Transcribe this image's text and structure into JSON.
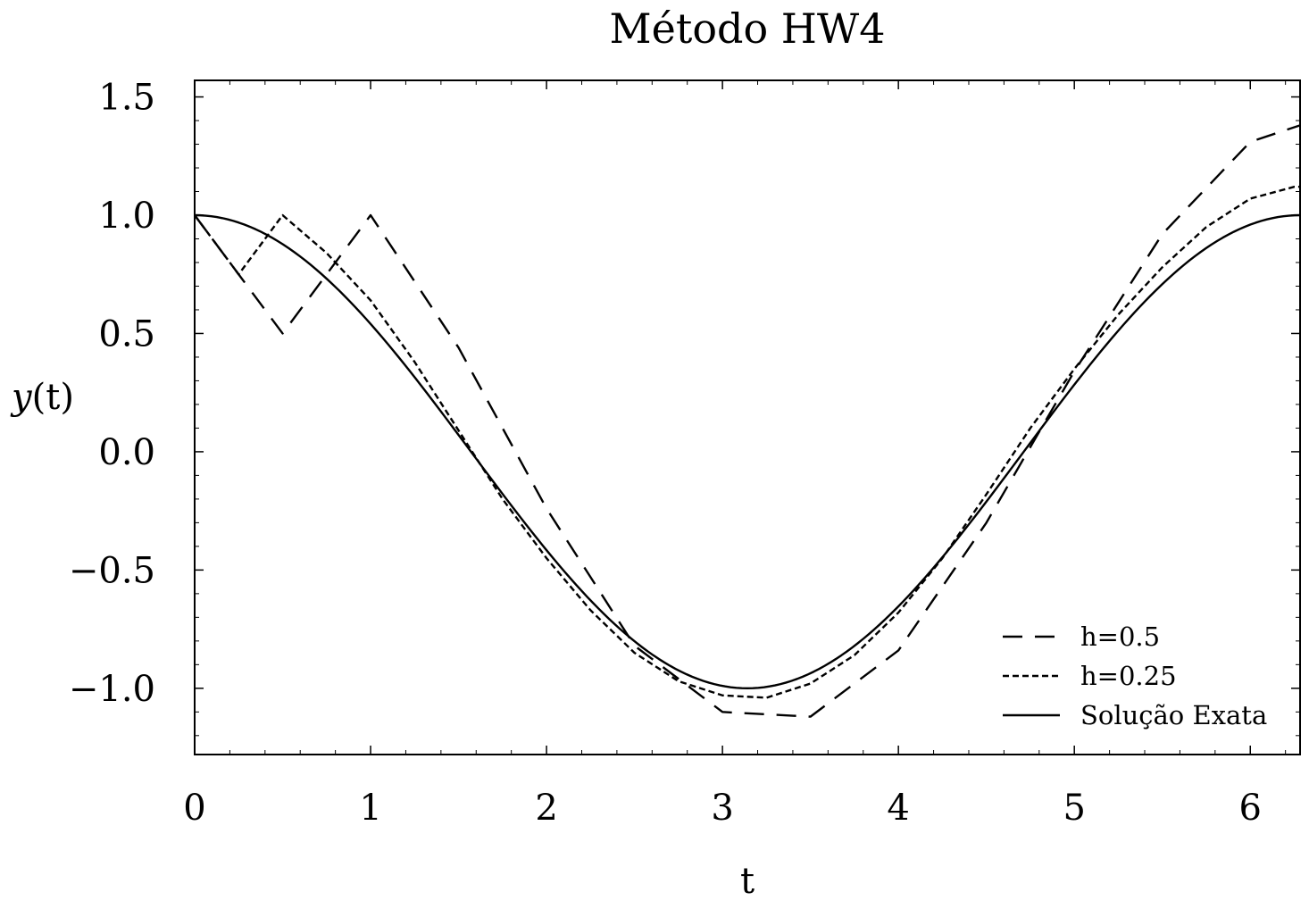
{
  "chart_data": {
    "type": "line",
    "title": "Método HW4",
    "xlabel": "t",
    "ylabel_italic": "y",
    "ylabel_rest": "(t)",
    "xlim": [
      0,
      6.283
    ],
    "ylim": [
      -1.28,
      1.57
    ],
    "xticks": [
      0,
      1,
      2,
      3,
      4,
      5,
      6
    ],
    "xtick_labels": [
      "0",
      "1",
      "2",
      "3",
      "4",
      "5",
      "6"
    ],
    "yticks": [
      1.5,
      1.0,
      0.5,
      0.0,
      -0.5,
      -1.0
    ],
    "ytick_labels": [
      "1.5",
      "1.0",
      "0.5",
      "0.0",
      "−0.5",
      "−1.0"
    ],
    "grid": false,
    "legend_position": "lower right",
    "series": [
      {
        "name": "h=0.5",
        "style": "dashed",
        "x": [
          0,
          0.25,
          0.5,
          0.75,
          1.0,
          1.5,
          2.0,
          2.5,
          3.0,
          3.5,
          4.0,
          4.5,
          5.0,
          5.5,
          6.0,
          6.283
        ],
        "y": [
          1.0,
          0.75,
          0.5,
          0.75,
          1.0,
          0.44,
          -0.24,
          -0.82,
          -1.1,
          -1.12,
          -0.84,
          -0.3,
          0.34,
          0.92,
          1.31,
          1.38
        ]
      },
      {
        "name": "h=0.25",
        "style": "dotted",
        "x": [
          0,
          0.25,
          0.5,
          0.75,
          1.0,
          1.25,
          1.5,
          1.75,
          2.0,
          2.25,
          2.5,
          2.75,
          3.0,
          3.25,
          3.5,
          3.75,
          4.0,
          4.25,
          4.5,
          4.75,
          5.0,
          5.25,
          5.5,
          5.75,
          6.0,
          6.25,
          6.283
        ],
        "y": [
          1.0,
          0.75,
          1.0,
          0.84,
          0.64,
          0.38,
          0.09,
          -0.2,
          -0.45,
          -0.67,
          -0.85,
          -0.97,
          -1.03,
          -1.04,
          -0.98,
          -0.86,
          -0.68,
          -0.45,
          -0.18,
          0.1,
          0.35,
          0.58,
          0.78,
          0.95,
          1.07,
          1.12,
          1.12
        ]
      },
      {
        "name": "Solução Exata",
        "style": "solid",
        "function": "cos(t)",
        "x_range": [
          0,
          6.283
        ]
      }
    ]
  }
}
